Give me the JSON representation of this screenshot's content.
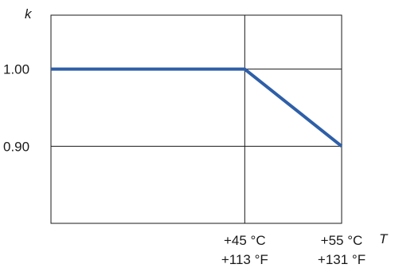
{
  "chart_data": {
    "type": "line",
    "ylabel": "k",
    "xlabel": "T",
    "series": [
      {
        "x": [
          25,
          45,
          55
        ],
        "y": [
          1.0,
          1.0,
          0.9
        ]
      }
    ],
    "xlim": [
      25,
      55
    ],
    "ylim": [
      0.8,
      1.07
    ],
    "x_ticks": [
      {
        "value": 45,
        "line1": "+45 °C",
        "line2": "+113 °F"
      },
      {
        "value": 55,
        "line1": "+55 °C",
        "line2": "+131 °F"
      }
    ],
    "y_ticks": [
      {
        "value": 1.0,
        "label": "1.00"
      },
      {
        "value": 0.9,
        "label": "0.90"
      }
    ],
    "grid": true,
    "line_color": "#2e5fa8",
    "frame_color": "#1a1a1a",
    "grid_color": "#1a1a1a"
  }
}
